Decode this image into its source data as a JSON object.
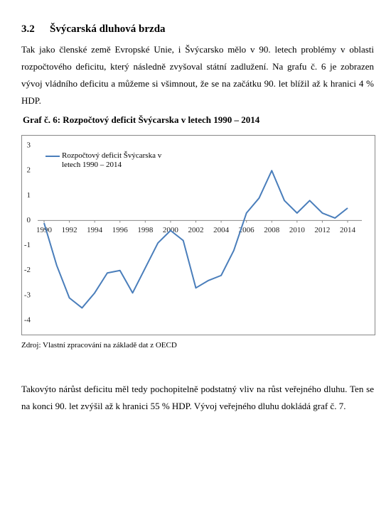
{
  "section": {
    "number": "3.2",
    "title": "Švýcarská dluhová brzda"
  },
  "paragraphs": [
    "Tak jako členské země Evropské Unie, i Švýcarsko mělo v 90. letech problémy v oblasti rozpočtového deficitu, který následně zvyšoval státní zadlužení. Na grafu č. 6 je zobrazen vývoj vládního deficitu a můžeme si všimnout, že se na začátku 90. let blížil až k hranici 4 % HDP.",
    "Takovýto nárůst deficitu měl tedy pochopitelně podstatný vliv na růst veřejného dluhu. Ten se na konci 90. let zvýšil až k hranici 55 % HDP. Vývoj veřejného dluhu dokládá graf č. 7."
  ],
  "figure_source": "Zdroj: Vlastní zpracování na základě dat z OECD",
  "chart_data": {
    "type": "line",
    "title": "Graf č. 6: Rozpočtový deficit Švýcarska v letech 1990 – 2014",
    "x": [
      1990,
      1991,
      1992,
      1993,
      1994,
      1995,
      1996,
      1997,
      1998,
      1999,
      2000,
      2001,
      2002,
      2003,
      2004,
      2005,
      2006,
      2007,
      2008,
      2009,
      2010,
      2011,
      2012,
      2013,
      2014
    ],
    "series": [
      {
        "name": "Rozpočtový deficit Švýcarska v letech 1990 – 2014",
        "color": "#4a7ebb",
        "values": [
          -0.1,
          -1.8,
          -3.1,
          -3.5,
          -2.9,
          -2.1,
          -2.0,
          -2.9,
          -1.9,
          -0.9,
          -0.4,
          -0.8,
          -2.7,
          -2.4,
          -2.2,
          -1.2,
          0.3,
          0.9,
          2.0,
          0.8,
          0.3,
          0.8,
          0.3,
          0.1,
          0.5
        ]
      }
    ],
    "xlim": [
      1990,
      2014
    ],
    "xticks": [
      1990,
      1992,
      1994,
      1996,
      1998,
      2000,
      2002,
      2004,
      2006,
      2008,
      2010,
      2012,
      2014
    ],
    "ylim": [
      -4,
      3
    ],
    "yticks": [
      -4,
      -3,
      -2,
      -1,
      0,
      1,
      2,
      3
    ],
    "grid": false,
    "legend": "top-left"
  }
}
